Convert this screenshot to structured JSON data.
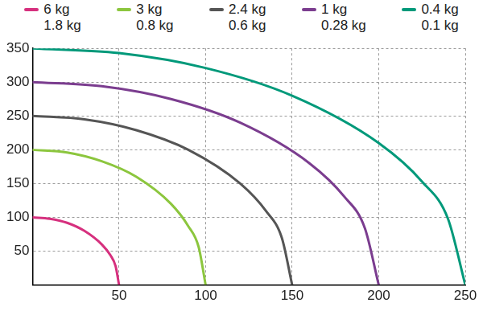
{
  "chart_data": {
    "type": "line",
    "series": [
      {
        "name": [
          "6 kg",
          "1.8 kg"
        ],
        "color": "#d6307e",
        "x": [
          0,
          10,
          20,
          30,
          40,
          45,
          48,
          50
        ],
        "values": [
          100,
          98,
          92,
          80,
          60,
          44,
          28,
          0
        ]
      },
      {
        "name": [
          "3 kg",
          "0.8 kg"
        ],
        "color": "#8cc63e",
        "x": [
          0,
          20,
          40,
          60,
          80,
          90,
          96,
          100
        ],
        "values": [
          200,
          196,
          183,
          160,
          120,
          87,
          56,
          0
        ]
      },
      {
        "name": [
          "2.4 kg",
          "0.6 kg"
        ],
        "color": "#555555",
        "x": [
          0,
          30,
          60,
          90,
          120,
          135,
          144,
          150
        ],
        "values": [
          250,
          245,
          229,
          200,
          150,
          109,
          70,
          0
        ]
      },
      {
        "name": [
          "1 kg",
          "0.28 kg"
        ],
        "color": "#7b3d8f",
        "x": [
          0,
          40,
          80,
          120,
          160,
          180,
          192,
          200
        ],
        "values": [
          300,
          294,
          275,
          240,
          180,
          131,
          84,
          0
        ]
      },
      {
        "name": [
          "0.4 kg",
          "0.1 kg"
        ],
        "color": "#00997a",
        "x": [
          0,
          50,
          100,
          150,
          200,
          225,
          240,
          250
        ],
        "values": [
          350,
          343,
          321,
          280,
          210,
          153,
          98,
          0
        ]
      }
    ],
    "xlim": [
      0,
      250
    ],
    "xticks": [
      50,
      100,
      150,
      200,
      250
    ],
    "ylim": [
      0,
      350
    ],
    "yticks": [
      50,
      100,
      150,
      200,
      250,
      300,
      350
    ],
    "grid": true,
    "legend": "top"
  }
}
